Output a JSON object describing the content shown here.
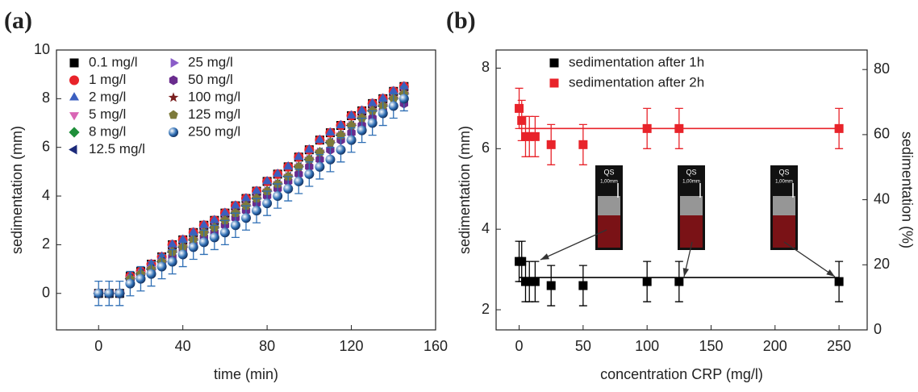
{
  "chart_data": [
    {
      "type": "scatter",
      "panel_label": "(a)",
      "x_label": "time (min)",
      "y_label": "sedimentation (mm)",
      "x": [
        0,
        5,
        10,
        15,
        20,
        25,
        30,
        35,
        40,
        45,
        50,
        55,
        60,
        65,
        70,
        75,
        80,
        85,
        90,
        95,
        100,
        105,
        110,
        115,
        120,
        125,
        130,
        135,
        140,
        145
      ],
      "xlim": [
        -20,
        160
      ],
      "xticks": [
        0,
        40,
        80,
        120,
        160
      ],
      "ylim": [
        -1.5,
        10
      ],
      "yticks": [
        0,
        2,
        4,
        6,
        8,
        10
      ],
      "legend": "upper-left",
      "legend_columns": 2,
      "series": [
        {
          "name": "0.1 mg/l",
          "color": "#000000",
          "marker": "square",
          "values": [
            0,
            0,
            0,
            0.7,
            0.9,
            1.2,
            1.5,
            2.0,
            2.2,
            2.5,
            2.8,
            3.0,
            3.3,
            3.6,
            3.9,
            4.2,
            4.6,
            4.9,
            5.2,
            5.6,
            5.9,
            6.3,
            6.6,
            6.9,
            7.3,
            7.5,
            7.8,
            8.0,
            8.3,
            8.5
          ]
        },
        {
          "name": "1 mg/l",
          "color": "#e8232a",
          "marker": "circle",
          "values": [
            0,
            0,
            0,
            0.7,
            0.9,
            1.2,
            1.5,
            2.0,
            2.2,
            2.5,
            2.8,
            3.0,
            3.3,
            3.6,
            3.9,
            4.2,
            4.6,
            4.9,
            5.2,
            5.6,
            5.9,
            6.3,
            6.6,
            6.9,
            7.3,
            7.5,
            7.8,
            8.0,
            8.3,
            8.5
          ]
        },
        {
          "name": "2 mg/l",
          "color": "#3b5fc0",
          "marker": "triangle-up",
          "values": [
            0,
            0,
            0,
            0.7,
            0.9,
            1.2,
            1.5,
            2.0,
            2.2,
            2.5,
            2.8,
            3.0,
            3.3,
            3.6,
            3.9,
            4.2,
            4.6,
            4.9,
            5.2,
            5.6,
            5.9,
            6.3,
            6.6,
            6.9,
            7.3,
            7.5,
            7.8,
            8.0,
            8.3,
            8.5
          ]
        },
        {
          "name": "5 mg/l",
          "color": "#d966b5",
          "marker": "triangle-down",
          "values": [
            0,
            0,
            0,
            0.6,
            0.8,
            1.0,
            1.3,
            1.7,
            1.9,
            2.2,
            2.5,
            2.7,
            3.0,
            3.3,
            3.6,
            3.9,
            4.2,
            4.5,
            4.8,
            5.2,
            5.5,
            5.8,
            6.2,
            6.5,
            6.9,
            7.2,
            7.5,
            7.7,
            8.0,
            8.2
          ]
        },
        {
          "name": "8 mg/l",
          "color": "#1f8f3a",
          "marker": "diamond",
          "values": [
            0,
            0,
            0,
            0.6,
            0.8,
            1.0,
            1.3,
            1.7,
            1.9,
            2.2,
            2.5,
            2.7,
            3.0,
            3.3,
            3.6,
            3.9,
            4.2,
            4.5,
            4.8,
            5.2,
            5.5,
            5.8,
            6.2,
            6.5,
            6.9,
            7.2,
            7.5,
            7.7,
            8.0,
            8.2
          ]
        },
        {
          "name": "12.5 mg/l",
          "color": "#1c2a7a",
          "marker": "triangle-left",
          "values": [
            0,
            0,
            0,
            0.6,
            0.8,
            1.0,
            1.3,
            1.7,
            1.9,
            2.2,
            2.5,
            2.7,
            3.0,
            3.3,
            3.6,
            3.9,
            4.2,
            4.5,
            4.8,
            5.2,
            5.5,
            5.8,
            6.2,
            6.5,
            6.9,
            7.2,
            7.5,
            7.7,
            8.0,
            8.2
          ]
        },
        {
          "name": "25 mg/l",
          "color": "#8a5cc8",
          "marker": "triangle-right",
          "values": [
            0,
            0,
            0,
            0.6,
            0.8,
            1.0,
            1.3,
            1.7,
            1.9,
            2.2,
            2.5,
            2.7,
            3.0,
            3.3,
            3.6,
            3.9,
            4.2,
            4.5,
            4.8,
            5.2,
            5.5,
            5.8,
            6.2,
            6.5,
            6.9,
            7.2,
            7.5,
            7.7,
            8.0,
            8.2
          ]
        },
        {
          "name": "50 mg/l",
          "color": "#6a2c8e",
          "marker": "hexagon",
          "values": [
            0,
            0,
            0,
            0.5,
            0.7,
            0.9,
            1.2,
            1.5,
            1.8,
            2.0,
            2.3,
            2.5,
            2.8,
            3.1,
            3.4,
            3.7,
            4.0,
            4.3,
            4.6,
            4.9,
            5.2,
            5.5,
            5.9,
            6.3,
            6.6,
            6.9,
            7.2,
            7.5,
            7.7,
            7.8
          ]
        },
        {
          "name": "100 mg/l",
          "color": "#7a1f1f",
          "marker": "star",
          "values": [
            0,
            0,
            0,
            0.6,
            0.8,
            1.0,
            1.3,
            1.7,
            1.9,
            2.2,
            2.5,
            2.7,
            3.0,
            3.3,
            3.6,
            3.9,
            4.2,
            4.5,
            4.8,
            5.2,
            5.5,
            5.8,
            6.2,
            6.5,
            6.9,
            7.2,
            7.5,
            7.7,
            8.0,
            8.2
          ]
        },
        {
          "name": "125 mg/l",
          "color": "#7d7a3a",
          "marker": "pentagon",
          "values": [
            0,
            0,
            0,
            0.6,
            0.8,
            1.0,
            1.3,
            1.7,
            1.9,
            2.2,
            2.5,
            2.7,
            3.0,
            3.3,
            3.6,
            3.9,
            4.2,
            4.5,
            4.8,
            5.2,
            5.5,
            5.8,
            6.2,
            6.5,
            6.9,
            7.2,
            7.5,
            7.7,
            8.0,
            8.2
          ]
        },
        {
          "name": "250 mg/l",
          "color": "#2f6fb5",
          "marker": "sphere",
          "values": [
            0,
            0,
            0,
            0.4,
            0.6,
            0.8,
            1.1,
            1.3,
            1.6,
            1.9,
            2.1,
            2.3,
            2.5,
            2.8,
            3.1,
            3.4,
            3.7,
            4.0,
            4.3,
            4.6,
            4.9,
            5.2,
            5.5,
            5.9,
            6.3,
            6.7,
            7.0,
            7.4,
            7.7,
            8.0
          ],
          "errors": [
            0.5,
            0.5,
            0.5,
            0.5,
            0.5,
            0.5,
            0.5,
            0.5,
            0.5,
            0.5,
            0.5,
            0.5,
            0.5,
            0.5,
            0.5,
            0.5,
            0.5,
            0.5,
            0.5,
            0.5,
            0.5,
            0.5,
            0.5,
            0.5,
            0.5,
            0.5,
            0.5,
            0.5,
            0.5,
            0.5
          ]
        }
      ]
    },
    {
      "type": "scatter",
      "panel_label": "(b)",
      "x_label": "concentration CRP (mg/l)",
      "y_label": "sedimentation (mm)",
      "y2_label": "sedimentation (%)",
      "xlim": [
        -18,
        272
      ],
      "xticks": [
        0,
        50,
        100,
        150,
        200,
        250
      ],
      "ylim": [
        1.5,
        8.45
      ],
      "yticks": [
        2,
        4,
        6,
        8
      ],
      "y2lim": [
        0,
        86
      ],
      "y2ticks": [
        0,
        20,
        40,
        60,
        80
      ],
      "legend": "upper-center",
      "series": [
        {
          "name": "sedimentation after 1h",
          "color": "#000000",
          "marker": "square",
          "x": [
            0,
            2,
            5,
            8,
            12.5,
            25,
            50,
            100,
            125,
            250
          ],
          "values": [
            3.2,
            3.2,
            2.7,
            2.7,
            2.7,
            2.6,
            2.6,
            2.7,
            2.7,
            2.7
          ],
          "errors": [
            0.5,
            0.5,
            0.5,
            0.5,
            0.5,
            0.5,
            0.5,
            0.5,
            0.5,
            0.5
          ],
          "fit": 2.8
        },
        {
          "name": "sedimentation after 2h",
          "color": "#e8232a",
          "marker": "square",
          "x": [
            0,
            2,
            5,
            8,
            12.5,
            25,
            50,
            100,
            125,
            250
          ],
          "values": [
            7.0,
            6.7,
            6.3,
            6.3,
            6.3,
            6.1,
            6.1,
            6.5,
            6.5,
            6.5
          ],
          "errors": [
            0.5,
            0.5,
            0.5,
            0.5,
            0.5,
            0.5,
            0.5,
            0.5,
            0.5,
            0.5
          ],
          "fit": 6.5
        }
      ],
      "insets": [
        {
          "label": "QS",
          "scale": "1,00mm"
        },
        {
          "label": "QS",
          "scale": "1,00mm"
        },
        {
          "label": "QS",
          "scale": "1,00mm"
        }
      ]
    }
  ]
}
